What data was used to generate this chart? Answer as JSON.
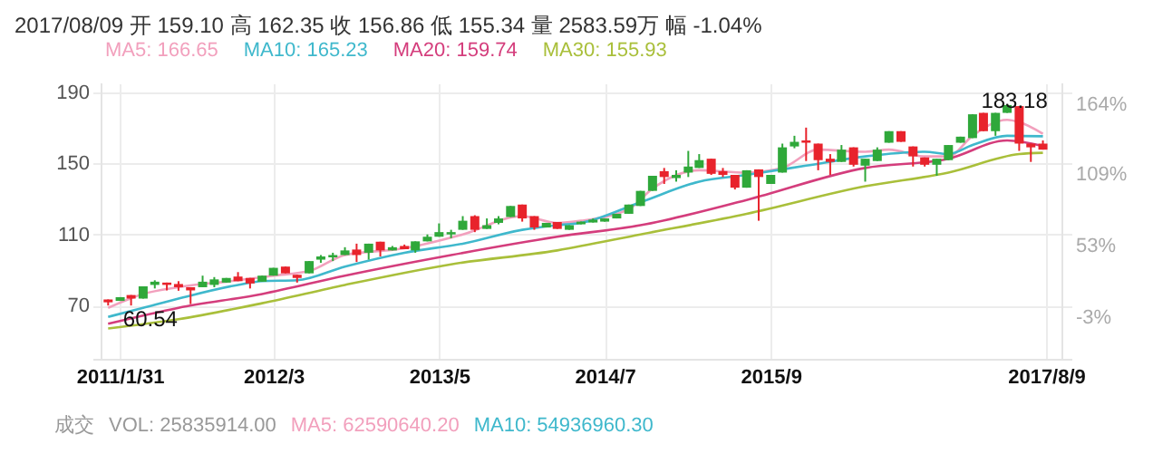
{
  "chart_data": {
    "type": "candlestick",
    "title": "2017/08/09 开 159.10 高 162.35 收 156.86 低 155.34 量 2583.59万 幅 -1.04%",
    "x": [
      "2011-01",
      "2011-02",
      "2011-03",
      "2011-04",
      "2011-05",
      "2011-06",
      "2011-07",
      "2011-08",
      "2011-09",
      "2011-10",
      "2011-11",
      "2011-12",
      "2012-01",
      "2012-02",
      "2012-03",
      "2012-04",
      "2012-05",
      "2012-06",
      "2012-07",
      "2012-08",
      "2012-09",
      "2012-10",
      "2012-11",
      "2012-12",
      "2013-01",
      "2013-02",
      "2013-03",
      "2013-04",
      "2013-05",
      "2013-06",
      "2013-07",
      "2013-08",
      "2013-09",
      "2013-10",
      "2013-11",
      "2013-12",
      "2014-01",
      "2014-02",
      "2014-03",
      "2014-04",
      "2014-05",
      "2014-06",
      "2014-07",
      "2014-08",
      "2014-09",
      "2014-10",
      "2014-11",
      "2014-12",
      "2015-01",
      "2015-02",
      "2015-03",
      "2015-04",
      "2015-05",
      "2015-06",
      "2015-07",
      "2015-08",
      "2015-09",
      "2015-10",
      "2015-11",
      "2015-12",
      "2016-01",
      "2016-02",
      "2016-03",
      "2016-04",
      "2016-05",
      "2016-06",
      "2016-07",
      "2016-08",
      "2016-09",
      "2016-10",
      "2016-11",
      "2016-12",
      "2017-01",
      "2017-02",
      "2017-03",
      "2017-04",
      "2017-05",
      "2017-06",
      "2017-07",
      "2017-08"
    ],
    "ohlc": [
      [
        73.4,
        73.4,
        70.0,
        71.8
      ],
      [
        72.6,
        74.7,
        72.6,
        74.7
      ],
      [
        75.9,
        75.9,
        70.0,
        73.9
      ],
      [
        73.9,
        80.8,
        73.9,
        80.8
      ],
      [
        81.6,
        84.2,
        79.6,
        83.4
      ],
      [
        82.9,
        82.9,
        78.5,
        81.6
      ],
      [
        82.1,
        83.7,
        78.3,
        80.3
      ],
      [
        80.3,
        80.3,
        70.8,
        78.5
      ],
      [
        80.3,
        86.8,
        80.3,
        83.4
      ],
      [
        81.6,
        86.0,
        80.3,
        84.7
      ],
      [
        82.9,
        85.5,
        82.9,
        85.5
      ],
      [
        86.3,
        88.8,
        83.7,
        83.7
      ],
      [
        85.5,
        85.5,
        79.6,
        82.4
      ],
      [
        83.4,
        86.8,
        83.4,
        86.8
      ],
      [
        86.8,
        91.2,
        86.8,
        91.2
      ],
      [
        91.9,
        91.9,
        88.1,
        88.1
      ],
      [
        87.3,
        87.3,
        82.9,
        85.5
      ],
      [
        88.1,
        95.0,
        88.1,
        95.0
      ],
      [
        95.8,
        98.4,
        94.0,
        97.6
      ],
      [
        97.1,
        99.7,
        95.0,
        98.4
      ],
      [
        98.4,
        102.8,
        98.4,
        101.0
      ],
      [
        101.5,
        104.8,
        94.5,
        98.4
      ],
      [
        99.7,
        104.8,
        95.8,
        104.8
      ],
      [
        105.9,
        105.9,
        97.6,
        101.0
      ],
      [
        101.0,
        103.5,
        101.0,
        102.8
      ],
      [
        103.5,
        104.3,
        101.7,
        101.7
      ],
      [
        101.0,
        106.1,
        99.7,
        106.1
      ],
      [
        106.1,
        110.0,
        106.1,
        108.7
      ],
      [
        108.7,
        116.2,
        108.7,
        111.3
      ],
      [
        110.0,
        112.6,
        107.9,
        111.3
      ],
      [
        112.6,
        120.3,
        112.6,
        117.7
      ],
      [
        120.3,
        120.8,
        111.3,
        112.6
      ],
      [
        113.1,
        119.0,
        113.1,
        115.2
      ],
      [
        116.5,
        120.3,
        115.7,
        119.0
      ],
      [
        119.8,
        126.0,
        119.8,
        126.0
      ],
      [
        126.8,
        126.8,
        117.2,
        119.0
      ],
      [
        120.3,
        120.3,
        112.6,
        113.9
      ],
      [
        113.9,
        116.5,
        113.9,
        116.5
      ],
      [
        117.0,
        117.0,
        113.1,
        113.1
      ],
      [
        112.6,
        115.2,
        112.6,
        115.2
      ],
      [
        115.7,
        117.2,
        115.7,
        117.2
      ],
      [
        116.7,
        119.0,
        116.7,
        118.3
      ],
      [
        117.2,
        119.0,
        117.2,
        119.0
      ],
      [
        119.0,
        121.6,
        119.0,
        121.6
      ],
      [
        121.6,
        126.8,
        121.6,
        126.8
      ],
      [
        126.0,
        134.5,
        126.0,
        134.5
      ],
      [
        134.5,
        143.0,
        134.5,
        143.0
      ],
      [
        145.6,
        147.4,
        138.4,
        142.3
      ],
      [
        141.7,
        146.1,
        139.7,
        143.5
      ],
      [
        144.8,
        157.0,
        142.3,
        148.2
      ],
      [
        147.4,
        155.2,
        147.4,
        151.8
      ],
      [
        152.6,
        152.6,
        143.5,
        144.1
      ],
      [
        145.6,
        147.4,
        142.3,
        143.5
      ],
      [
        143.5,
        143.5,
        135.3,
        136.3
      ],
      [
        136.3,
        146.1,
        136.3,
        146.1
      ],
      [
        146.6,
        146.6,
        117.7,
        142.3
      ],
      [
        138.4,
        143.5,
        138.4,
        143.5
      ],
      [
        144.8,
        161.1,
        144.8,
        159.0
      ],
      [
        159.5,
        165.5,
        158.5,
        162.1
      ],
      [
        162.9,
        170.1,
        151.3,
        161.6
      ],
      [
        161.1,
        161.1,
        146.1,
        151.8
      ],
      [
        152.6,
        155.2,
        143.5,
        150.8
      ],
      [
        150.8,
        160.3,
        150.8,
        157.7
      ],
      [
        159.0,
        159.0,
        148.2,
        149.2
      ],
      [
        148.7,
        152.6,
        139.7,
        152.6
      ],
      [
        151.3,
        159.0,
        151.3,
        157.7
      ],
      [
        161.6,
        168.1,
        161.6,
        168.1
      ],
      [
        168.1,
        168.1,
        162.1,
        162.1
      ],
      [
        159.5,
        159.5,
        148.2,
        153.9
      ],
      [
        153.3,
        153.3,
        148.2,
        149.2
      ],
      [
        149.2,
        152.6,
        143.0,
        152.6
      ],
      [
        151.8,
        160.3,
        151.8,
        160.3
      ],
      [
        161.6,
        165.0,
        161.6,
        165.0
      ],
      [
        164.2,
        177.6,
        164.2,
        177.6
      ],
      [
        178.4,
        178.4,
        168.1,
        168.1
      ],
      [
        168.1,
        178.4,
        165.5,
        178.4
      ],
      [
        178.4,
        183.18,
        178.4,
        182.8
      ],
      [
        182.2,
        182.2,
        157.0,
        161.1
      ],
      [
        161.1,
        161.1,
        150.8,
        159.0
      ],
      [
        161.1,
        162.9,
        157.7,
        157.7
      ]
    ],
    "colors": [
      "#e8232c",
      "#2fa83a",
      "#e8232c",
      "#2fa83a",
      "#2fa83a",
      "#e8232c",
      "#e8232c",
      "#e8232c",
      "#2fa83a",
      "#2fa83a",
      "#2fa83a",
      "#e8232c",
      "#e8232c",
      "#2fa83a",
      "#2fa83a",
      "#e8232c",
      "#e8232c",
      "#2fa83a",
      "#2fa83a",
      "#2fa83a",
      "#2fa83a",
      "#e8232c",
      "#2fa83a",
      "#e8232c",
      "#2fa83a",
      "#e8232c",
      "#2fa83a",
      "#2fa83a",
      "#2fa83a",
      "#2fa83a",
      "#2fa83a",
      "#e8232c",
      "#2fa83a",
      "#2fa83a",
      "#2fa83a",
      "#e8232c",
      "#e8232c",
      "#2fa83a",
      "#e8232c",
      "#2fa83a",
      "#2fa83a",
      "#2fa83a",
      "#2fa83a",
      "#2fa83a",
      "#2fa83a",
      "#2fa83a",
      "#2fa83a",
      "#e8232c",
      "#2fa83a",
      "#2fa83a",
      "#2fa83a",
      "#e8232c",
      "#e8232c",
      "#e8232c",
      "#2fa83a",
      "#e8232c",
      "#2fa83a",
      "#2fa83a",
      "#2fa83a",
      "#e8232c",
      "#e8232c",
      "#e8232c",
      "#2fa83a",
      "#e8232c",
      "#2fa83a",
      "#2fa83a",
      "#2fa83a",
      "#e8232c",
      "#e8232c",
      "#e8232c",
      "#2fa83a",
      "#2fa83a",
      "#2fa83a",
      "#2fa83a",
      "#e8232c",
      "#2fa83a",
      "#2fa83a",
      "#e8232c",
      "#e8232c",
      "#e8232c"
    ],
    "series": [
      {
        "type": "line",
        "name": "MA5: 166.65",
        "color": "#f2a0bd",
        "x": [
          "2011-01",
          "2011-04",
          "2011-07",
          "2011-12",
          "2012-03",
          "2012-06",
          "2012-09",
          "2013-02",
          "2013-07",
          "2013-12",
          "2014-03",
          "2014-05",
          "2014-09",
          "2014-11",
          "2015-03",
          "2015-07",
          "2015-10",
          "2016-01",
          "2016-05",
          "2016-07",
          "2016-10",
          "2016-12",
          "2017-02",
          "2017-05",
          "2017-06",
          "2017-08"
        ],
        "values": [
          68.7,
          76.5,
          80.3,
          84.2,
          86.8,
          89.4,
          98.4,
          102.2,
          110,
          120.3,
          116.5,
          117.7,
          124.2,
          135.8,
          146.1,
          144.8,
          147.4,
          157.7,
          156.5,
          157.7,
          153.9,
          153.9,
          165.5,
          174.5,
          173.2,
          166.65
        ]
      },
      {
        "type": "line",
        "name": "MA10: 165.23",
        "color": "#3fb8cc",
        "x": [
          "2011-01",
          "2011-04",
          "2011-07",
          "2011-12",
          "2012-02",
          "2012-05",
          "2012-09",
          "2013-02",
          "2013-07",
          "2013-12",
          "2014-03",
          "2014-05",
          "2014-10",
          "2015-03",
          "2015-07",
          "2015-12",
          "2016-05",
          "2016-10",
          "2016-12",
          "2017-02",
          "2017-05",
          "2017-08"
        ],
        "values": [
          63.6,
          68.7,
          73.9,
          81.6,
          83.7,
          84.2,
          91.9,
          99.7,
          104.8,
          112.6,
          115.2,
          116.5,
          128.1,
          139.7,
          143.5,
          148.7,
          153.9,
          156.5,
          155.2,
          160.3,
          165.5,
          165.23
        ]
      },
      {
        "type": "line",
        "name": "MA20: 159.74",
        "color": "#d43d7c",
        "x": [
          "2011-01",
          "2011-07",
          "2012-02",
          "2012-09",
          "2013-06",
          "2014-03",
          "2014-10",
          "2015-07",
          "2016-05",
          "2016-12",
          "2017-05",
          "2017-08"
        ],
        "values": [
          59.7,
          68.7,
          76.5,
          86.8,
          98.4,
          108.7,
          115.2,
          129.4,
          147.4,
          152.6,
          162.9,
          159.74
        ]
      },
      {
        "type": "line",
        "name": "MA30: 155.93",
        "color": "#a9bf3a",
        "x": [
          "2011-01",
          "2011-07",
          "2012-02",
          "2012-09",
          "2013-06",
          "2014-03",
          "2014-10",
          "2015-07",
          "2016-05",
          "2016-12",
          "2017-06",
          "2017-08"
        ],
        "values": [
          57.1,
          62.3,
          71.3,
          81.6,
          93.2,
          101.0,
          110,
          121.6,
          137.1,
          144.8,
          155.2,
          155.93
        ]
      }
    ],
    "xlim": [
      "2010-12-15",
      "2017-09-20"
    ],
    "xticks": [
      {
        "value": "2011-01-31",
        "label": "2011/1/31"
      },
      {
        "value": "2012-03",
        "label": "2012/3"
      },
      {
        "value": "2013-05",
        "label": "2013/5"
      },
      {
        "value": "2014-07",
        "label": "2014/7"
      },
      {
        "value": "2015-09",
        "label": "2015/9"
      },
      {
        "value": "2017-08-09",
        "label": "2017/8/9"
      }
    ],
    "ylim": [
      40,
      195
    ],
    "yticks": [
      70,
      110,
      150,
      190
    ],
    "y2lim": [
      -44.3,
      171.6
    ],
    "y2ticks": [
      {
        "value": -3,
        "label": "-3%"
      },
      {
        "value": 53,
        "label": "53%"
      },
      {
        "value": 109,
        "label": "109%"
      },
      {
        "value": 164,
        "label": "164%"
      }
    ],
    "grid": true,
    "legend": "top",
    "annotations": [
      {
        "text": "183.18",
        "x": "2017-05",
        "y": 183.18
      },
      {
        "text": "60.54",
        "x": "2011-04",
        "y": 60.54
      },
      "成交",
      "VOL: 25835914.00",
      "MA5: 62590640.20",
      "MA10: 54936960.30"
    ]
  }
}
